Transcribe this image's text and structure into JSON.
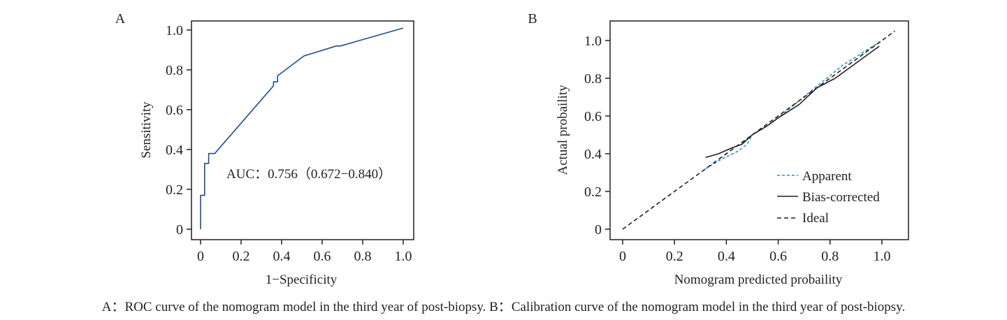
{
  "chart_data": [
    {
      "panel_label": "A",
      "type": "line",
      "xlabel": "1−Specificity",
      "ylabel": "Sensitivity",
      "xlim": [
        0,
        1.0
      ],
      "ylim": [
        0,
        1.0
      ],
      "x_ticks": [
        0,
        0.2,
        0.4,
        0.6,
        0.8,
        1.0
      ],
      "x_tick_labels": [
        "0",
        "0.2",
        "0.4",
        "0.6",
        "0.8",
        "1.0"
      ],
      "y_ticks": [
        0,
        0.2,
        0.4,
        0.6,
        0.8,
        1.0
      ],
      "y_tick_labels": [
        "0",
        "0.2",
        "0.4",
        "0.6",
        "0.8",
        "1.0"
      ],
      "grid": false,
      "annotation": "AUC：0.756（0.672−0.840）",
      "series": [
        {
          "color": "#1f4e8c",
          "points": [
            [
              0,
              0
            ],
            [
              0,
              0.17
            ],
            [
              0.02,
              0.17
            ],
            [
              0.02,
              0.33
            ],
            [
              0.04,
              0.33
            ],
            [
              0.04,
              0.38
            ],
            [
              0.07,
              0.38
            ],
            [
              0.36,
              0.72
            ],
            [
              0.36,
              0.74
            ],
            [
              0.38,
              0.74
            ],
            [
              0.38,
              0.77
            ],
            [
              0.51,
              0.87
            ],
            [
              0.67,
              0.92
            ],
            [
              0.69,
              0.92
            ],
            [
              1.0,
              1.01
            ]
          ]
        }
      ]
    },
    {
      "panel_label": "B",
      "type": "line",
      "xlabel": "Nomogram predicted probaility",
      "ylabel": "Actual probaility",
      "xlim": [
        0,
        1.0
      ],
      "ylim": [
        0,
        1.0
      ],
      "x_ticks": [
        0,
        0.2,
        0.4,
        0.6,
        0.8,
        1.0
      ],
      "x_tick_labels": [
        "0",
        "0.2",
        "0.4",
        "0.6",
        "0.8",
        "1.0"
      ],
      "y_ticks": [
        0,
        0.2,
        0.4,
        0.6,
        0.8,
        1.0
      ],
      "y_tick_labels": [
        "0",
        "0.2",
        "0.4",
        "0.6",
        "0.8",
        "1.0"
      ],
      "grid": false,
      "legend_position": "bottom-right",
      "series": [
        {
          "name": "Apparent",
          "color": "#2a8fd0",
          "dash": "dashed",
          "points": [
            [
              0.32,
              0.32
            ],
            [
              0.38,
              0.37
            ],
            [
              0.44,
              0.41
            ],
            [
              0.48,
              0.45
            ],
            [
              0.5,
              0.5
            ],
            [
              0.55,
              0.54
            ],
            [
              0.6,
              0.59
            ],
            [
              0.68,
              0.68
            ],
            [
              0.76,
              0.77
            ],
            [
              0.85,
              0.87
            ],
            [
              1.0,
              1.0
            ]
          ]
        },
        {
          "name": "Bias-corrected",
          "color": "#231f20",
          "dash": "solid",
          "points": [
            [
              0.32,
              0.38
            ],
            [
              0.37,
              0.4
            ],
            [
              0.42,
              0.43
            ],
            [
              0.46,
              0.45
            ],
            [
              0.5,
              0.5
            ],
            [
              0.56,
              0.55
            ],
            [
              0.6,
              0.59
            ],
            [
              0.68,
              0.66
            ],
            [
              0.75,
              0.75
            ],
            [
              0.82,
              0.8
            ],
            [
              0.9,
              0.88
            ],
            [
              0.99,
              0.97
            ]
          ]
        },
        {
          "name": "Ideal",
          "color": "#231f20",
          "dash": "dashed",
          "points": [
            [
              0,
              0
            ],
            [
              1.05,
              1.05
            ]
          ]
        }
      ]
    }
  ],
  "caption": "A：ROC curve of the nomogram model in the third year of post-biopsy. B：Calibration curve of the nomogram model in the third year of post-biopsy."
}
